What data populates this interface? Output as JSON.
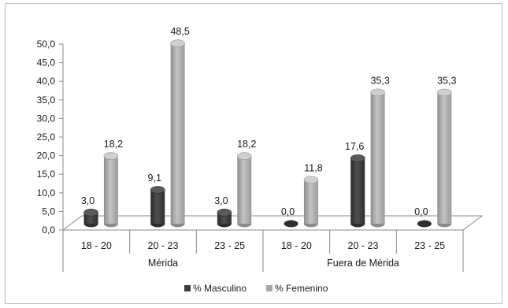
{
  "chart_data": {
    "type": "bar",
    "groups": [
      {
        "name": "Mérida",
        "categories": [
          "18 - 20",
          "20 - 23",
          "23 - 25"
        ]
      },
      {
        "name": "Fuera de Mérida",
        "categories": [
          "18 - 20",
          "20 - 23",
          "23 - 25"
        ]
      }
    ],
    "categories": [
      "18 - 20",
      "20 - 23",
      "23 - 25",
      "18 - 20",
      "20 - 23",
      "23 - 25"
    ],
    "series": [
      {
        "name": "% Masculino",
        "values": [
          3.0,
          9.1,
          3.0,
          0.0,
          17.6,
          0.0
        ],
        "labels": [
          "3,0",
          "9,1",
          "3,0",
          "0,0",
          "17,6",
          "0,0"
        ],
        "color": "#3c3c3c"
      },
      {
        "name": "% Femenino",
        "values": [
          18.2,
          48.5,
          18.2,
          11.8,
          35.3,
          35.3
        ],
        "labels": [
          "18,2",
          "48,5",
          "18,2",
          "11,8",
          "35,3",
          "35,3"
        ],
        "color": "#a6a6a6"
      }
    ],
    "yticks": [
      "0,0",
      "5,0",
      "10,0",
      "15,0",
      "20,0",
      "25,0",
      "30,0",
      "35,0",
      "40,0",
      "45,0",
      "50,0"
    ],
    "ylim": [
      0,
      50
    ],
    "grid": false,
    "legend_position": "bottom",
    "style": "3d-cylinder"
  }
}
